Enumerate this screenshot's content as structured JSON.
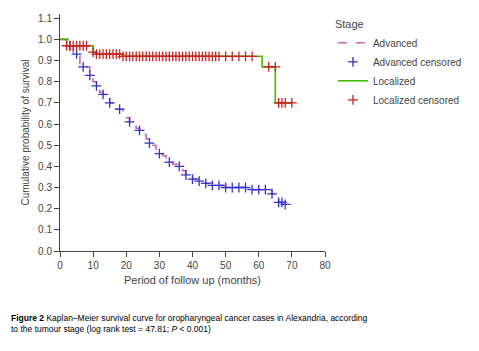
{
  "chart_data": {
    "type": "step",
    "xlabel": "Period of follow up (months)",
    "ylabel": "Cumulative probability of survival",
    "caption_bold": "Figure 2",
    "caption_normal": " Kaplan–Meier survival curve for oropharyngeal cancer cases in Alexandria, according\nto the tumour stage (log rank test = 47.81; ",
    "caption_italic": "P",
    "caption_end": " < 0.001)",
    "xlim": [
      0,
      80
    ],
    "xticks": [
      0,
      10,
      20,
      30,
      40,
      50,
      60,
      70,
      80
    ],
    "ylim": [
      0.0,
      1.12
    ],
    "yticks": [
      {
        "value": 0.0,
        "label": "0.0"
      },
      0.1,
      0.2,
      0.3,
      0.4,
      0.5,
      0.6,
      0.7,
      0.8,
      0.9,
      {
        "value": 1.0,
        "label": "1.0"
      },
      1.1
    ],
    "grid": false,
    "legend": "right",
    "legend_title": "Stage",
    "series": [
      {
        "name": "Advanced",
        "type": "step",
        "color": "#CC66BB",
        "line_style": "dashed",
        "x": [
          0,
          1,
          2,
          3,
          4,
          5,
          6,
          7,
          8,
          9,
          10,
          11,
          12,
          13,
          14,
          15,
          16,
          17,
          18,
          19,
          20,
          21,
          22,
          23,
          24,
          25,
          26,
          27,
          28,
          29,
          30,
          31,
          32,
          33,
          34,
          35,
          36,
          37,
          38,
          39,
          40,
          41,
          42,
          43,
          44,
          45,
          46,
          47,
          48,
          49,
          50,
          51,
          52,
          53,
          54,
          55,
          56,
          57,
          58,
          59,
          60,
          61,
          62,
          63,
          64,
          65,
          66,
          67,
          68,
          69,
          70
        ],
        "values": [
          1.0,
          1.0,
          1.0,
          0.97,
          0.93,
          0.93,
          0.88,
          0.87,
          0.87,
          0.83,
          0.8,
          0.78,
          0.75,
          0.74,
          0.74,
          0.7,
          0.68,
          0.67,
          0.67,
          0.65,
          0.63,
          0.61,
          0.59,
          0.58,
          0.57,
          0.55,
          0.53,
          0.51,
          0.5,
          0.47,
          0.46,
          0.45,
          0.44,
          0.42,
          0.41,
          0.41,
          0.4,
          0.38,
          0.36,
          0.35,
          0.34,
          0.34,
          0.33,
          0.33,
          0.32,
          0.32,
          0.31,
          0.31,
          0.31,
          0.31,
          0.3,
          0.3,
          0.3,
          0.3,
          0.3,
          0.3,
          0.3,
          0.29,
          0.29,
          0.29,
          0.29,
          0.29,
          0.29,
          0.29,
          0.27,
          0.27,
          0.23,
          0.23,
          0.22,
          0.22,
          0.22
        ]
      },
      {
        "name": "Advanced censored",
        "type": "scatter",
        "color": "#3333CC",
        "marker": "+",
        "x": [
          3,
          5,
          7,
          9,
          11,
          13,
          15,
          18,
          21,
          24,
          27,
          30,
          33,
          36,
          38,
          40,
          42,
          44,
          46,
          48,
          50,
          52,
          54,
          56,
          58,
          60,
          62,
          64,
          66,
          67,
          68
        ],
        "values": [
          0.97,
          0.93,
          0.87,
          0.83,
          0.78,
          0.74,
          0.7,
          0.67,
          0.61,
          0.57,
          0.51,
          0.46,
          0.42,
          0.4,
          0.36,
          0.34,
          0.33,
          0.32,
          0.31,
          0.31,
          0.3,
          0.3,
          0.3,
          0.3,
          0.29,
          0.29,
          0.29,
          0.27,
          0.23,
          0.23,
          0.22
        ]
      },
      {
        "name": "Localized",
        "type": "step",
        "color": "#44BB00",
        "line_style": "solid",
        "x": [
          0,
          1,
          2,
          9,
          10,
          11,
          18,
          19,
          60,
          61,
          64,
          65,
          70
        ],
        "values": [
          1.0,
          1.0,
          0.97,
          0.97,
          0.94,
          0.93,
          0.93,
          0.92,
          0.92,
          0.87,
          0.87,
          0.7,
          0.7
        ]
      },
      {
        "name": "Localized censored",
        "type": "scatter",
        "color": "#CC2222",
        "marker": "+",
        "x": [
          2,
          3,
          4,
          5,
          6,
          7,
          8,
          10,
          11,
          12,
          13,
          14,
          15,
          16,
          17,
          18,
          19,
          20,
          21,
          22,
          23,
          24,
          25,
          26,
          27,
          28,
          29,
          30,
          31,
          32,
          33,
          34,
          35,
          36,
          37,
          38,
          39,
          40,
          41,
          42,
          43,
          44,
          45,
          46,
          47,
          48,
          50,
          52,
          54,
          56,
          58,
          63,
          65,
          66,
          67,
          68,
          70
        ],
        "values": [
          0.97,
          0.97,
          0.97,
          0.97,
          0.97,
          0.97,
          0.97,
          0.94,
          0.93,
          0.93,
          0.93,
          0.93,
          0.93,
          0.93,
          0.93,
          0.93,
          0.92,
          0.92,
          0.92,
          0.92,
          0.92,
          0.92,
          0.92,
          0.92,
          0.92,
          0.92,
          0.92,
          0.92,
          0.92,
          0.92,
          0.92,
          0.92,
          0.92,
          0.92,
          0.92,
          0.92,
          0.92,
          0.92,
          0.92,
          0.92,
          0.92,
          0.92,
          0.92,
          0.92,
          0.92,
          0.92,
          0.92,
          0.92,
          0.92,
          0.92,
          0.92,
          0.87,
          0.87,
          0.7,
          0.7,
          0.7,
          0.7
        ]
      }
    ]
  }
}
